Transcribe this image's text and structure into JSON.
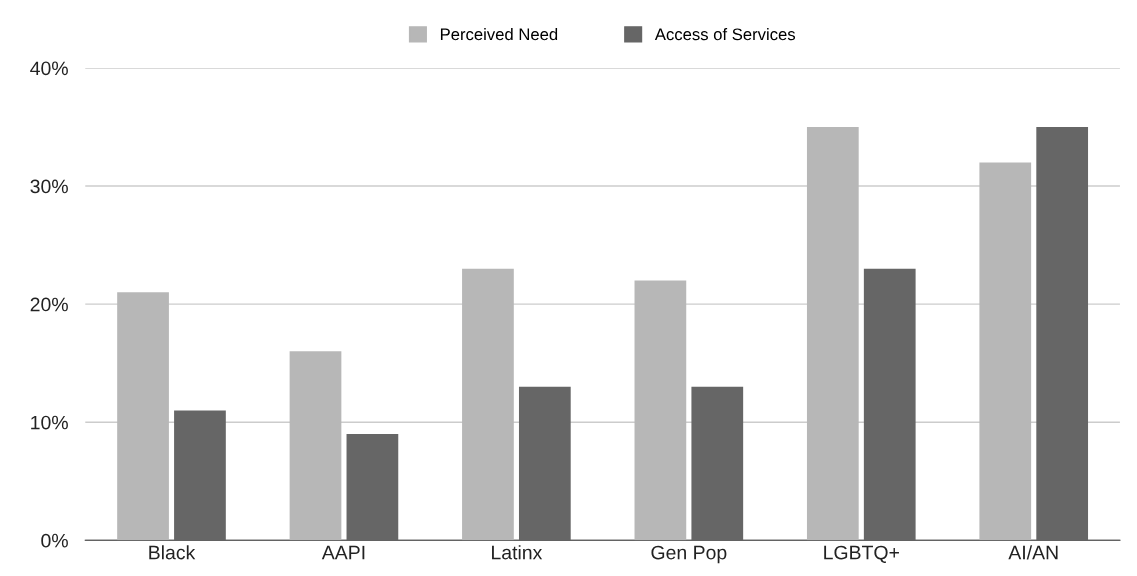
{
  "chart_data": {
    "type": "bar",
    "categories": [
      "Black",
      "AAPI",
      "Latinx",
      "Gen Pop",
      "LGBTQ+",
      "AI/AN"
    ],
    "series": [
      {
        "name": "Perceived Need",
        "color": "#b7b7b7",
        "values": [
          21,
          16,
          23,
          22,
          35,
          32
        ]
      },
      {
        "name": "Access of Services",
        "color": "#666666",
        "values": [
          11,
          9,
          13,
          13,
          23,
          35
        ]
      }
    ],
    "ylim": [
      0,
      40
    ],
    "yticks": [
      {
        "value": 0,
        "label": "0%"
      },
      {
        "value": 10,
        "label": "10%"
      },
      {
        "value": 20,
        "label": "20%"
      },
      {
        "value": 30,
        "label": "30%"
      },
      {
        "value": 40,
        "label": "40%"
      }
    ],
    "grid": "y",
    "legend": "top"
  }
}
